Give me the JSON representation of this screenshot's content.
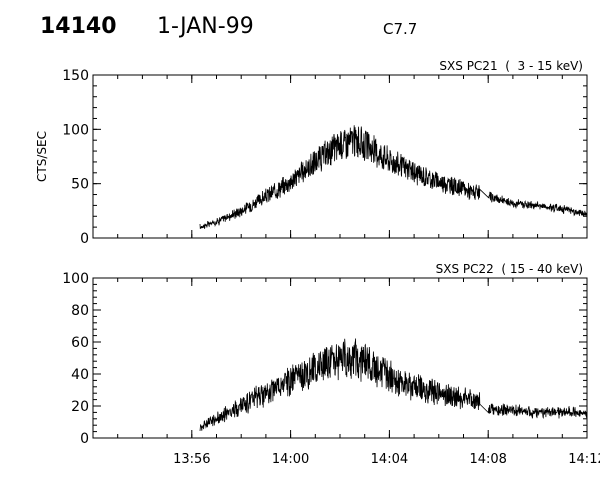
{
  "header": {
    "event_id": "14140",
    "date": "1-JAN-99",
    "flare_class": "C7.7"
  },
  "chart_data": [
    {
      "type": "line",
      "title": "SXS PC21  (  3 - 15 keV)",
      "ylabel": "CTS/SEC",
      "xlabel": "",
      "ylim": [
        0,
        150
      ],
      "yticks": [
        0,
        50,
        100,
        150
      ],
      "xlim": [
        "13:52",
        "14:12"
      ],
      "xtick_labels": [
        "13:56",
        "14:00",
        "14:04",
        "14:08",
        "14:12"
      ],
      "x_tick_minutes": [
        4,
        8,
        12,
        16,
        20
      ],
      "series": [
        {
          "name": "",
          "x": [
            "13:56:20",
            "13:57:00",
            "13:58:00",
            "13:59:00",
            "14:00:00",
            "14:01:00",
            "14:02:00",
            "14:02:30",
            "14:03:00",
            "14:04:00",
            "14:05:00",
            "14:06:00",
            "14:07:00",
            "14:07:40",
            "14:08:00",
            "14:09:00",
            "14:10:00",
            "14:11:00",
            "14:12:00"
          ],
          "y": [
            10,
            15,
            25,
            38,
            52,
            70,
            86,
            90,
            86,
            72,
            60,
            52,
            45,
            40,
            38,
            32,
            30,
            27,
            22
          ]
        }
      ]
    },
    {
      "type": "line",
      "title": "SXS PC22  ( 15 - 40 keV)",
      "ylabel": "",
      "xlabel": "",
      "ylim": [
        0,
        100
      ],
      "yticks": [
        0,
        20,
        40,
        60,
        80,
        100
      ],
      "xlim": [
        "13:52",
        "14:12"
      ],
      "xtick_labels": [
        "13:56",
        "14:00",
        "14:04",
        "14:08",
        "14:12"
      ],
      "x_tick_minutes": [
        4,
        8,
        12,
        16,
        20
      ],
      "series": [
        {
          "name": "",
          "x": [
            "13:56:20",
            "13:57:00",
            "13:58:00",
            "13:59:00",
            "14:00:00",
            "14:01:00",
            "14:02:00",
            "14:02:30",
            "14:03:00",
            "14:04:00",
            "14:05:00",
            "14:06:00",
            "14:07:00",
            "14:07:40",
            "14:08:00",
            "14:09:00",
            "14:10:00",
            "14:11:00",
            "14:12:00"
          ],
          "y": [
            7,
            12,
            20,
            28,
            36,
            44,
            49,
            50,
            47,
            38,
            32,
            28,
            25,
            23,
            18,
            17,
            16,
            16,
            15
          ]
        }
      ]
    }
  ]
}
